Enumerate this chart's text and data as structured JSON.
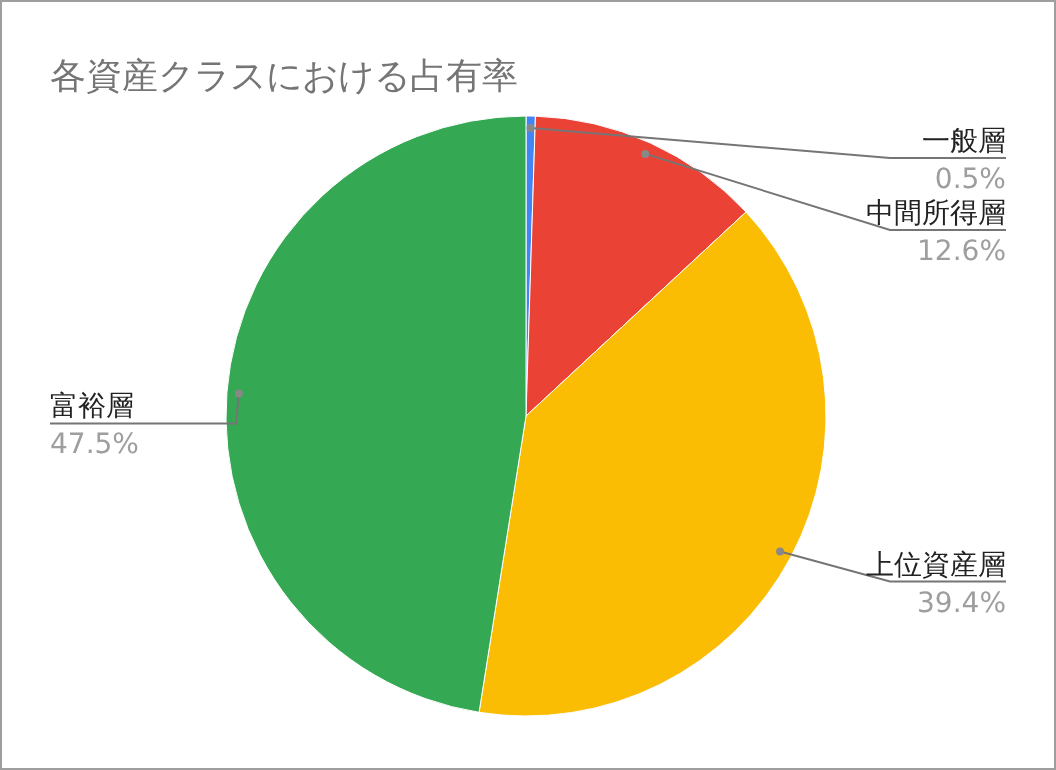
{
  "chart_data": {
    "type": "pie",
    "title": "各資産クラスにおける占有率",
    "categories": [
      "一般層",
      "中間所得層",
      "上位資産層",
      "富裕層"
    ],
    "values": [
      0.5,
      12.6,
      39.4,
      47.5
    ],
    "value_labels": [
      "0.5%",
      "12.6%",
      "39.4%",
      "47.5%"
    ],
    "colors": [
      "#4285f4",
      "#ea4335",
      "#fbbc04",
      "#34a853"
    ]
  }
}
